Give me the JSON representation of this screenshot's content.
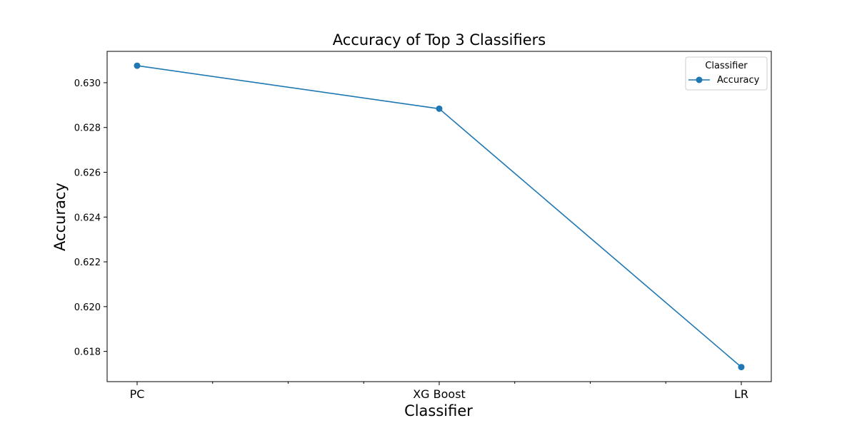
{
  "chart_data": {
    "type": "line",
    "title": "Accuracy of Top 3 Classifiers",
    "xlabel": "Classifier",
    "ylabel": "Accuracy",
    "categories": [
      "PC",
      "XG Boost",
      "LR"
    ],
    "series": [
      {
        "name": "Accuracy",
        "values": [
          0.63076,
          0.62884,
          0.6173
        ]
      }
    ],
    "ylim": [
      0.61665,
      0.6314
    ],
    "yticks": [
      0.618,
      0.62,
      0.622,
      0.624,
      0.626,
      0.628,
      0.63
    ],
    "ytick_labels": [
      "0.618",
      "0.620",
      "0.622",
      "0.624",
      "0.626",
      "0.628",
      "0.630"
    ],
    "grid": false,
    "legend": {
      "title": "Classifier",
      "placement": "top-right"
    },
    "colors": {
      "series": "#1f77b4",
      "axes": "#000000",
      "legend_border": "#cccccc"
    }
  }
}
